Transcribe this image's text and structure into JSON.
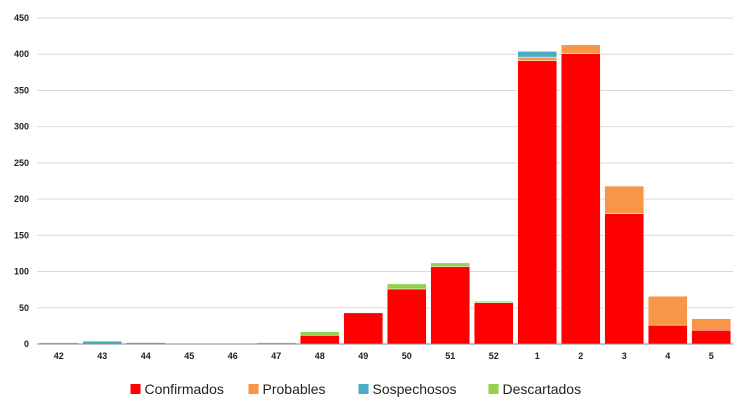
{
  "chart_data": {
    "type": "bar",
    "stacked": true,
    "categories": [
      "42",
      "43",
      "44",
      "45",
      "46",
      "47",
      "48",
      "49",
      "50",
      "51",
      "52",
      "1",
      "2",
      "3",
      "4",
      "5"
    ],
    "series": [
      {
        "name": "Confirmados",
        "color": "#ff0000",
        "values": [
          0,
          0,
          0,
          0,
          0,
          0,
          12,
          43,
          76,
          107,
          57,
          391,
          401,
          180,
          26,
          19
        ]
      },
      {
        "name": "Probables",
        "color": "#f79646",
        "values": [
          0,
          0,
          0,
          0,
          0,
          0,
          0,
          0,
          0,
          0,
          0,
          5,
          12,
          38,
          40,
          16
        ]
      },
      {
        "name": "Sospechosos",
        "color": "#4bacc6",
        "values": [
          0,
          4,
          2,
          1,
          1,
          0,
          0,
          0,
          0,
          0,
          0,
          8,
          0,
          0,
          0,
          0
        ]
      },
      {
        "name": "Descartados",
        "color": "#92d050",
        "values": [
          2,
          0,
          0,
          0,
          0,
          2,
          5,
          0,
          7,
          5,
          2,
          0,
          0,
          0,
          0,
          0
        ]
      }
    ],
    "ylim": [
      0,
      450
    ],
    "yticks": [
      0,
      50,
      100,
      150,
      200,
      250,
      300,
      350,
      400,
      450
    ],
    "grid": true,
    "legend": "bottom"
  }
}
